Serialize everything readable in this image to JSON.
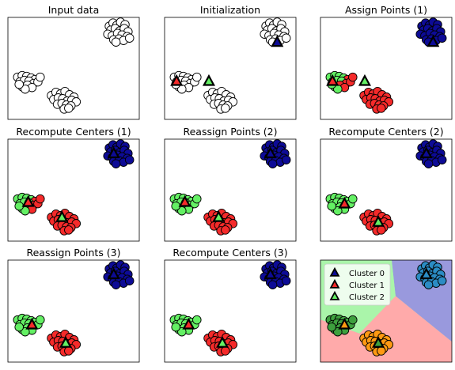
{
  "colors": {
    "cluster0": "#0d0b96",
    "cluster1": "#f52a2a",
    "cluster2": "#64f064",
    "unassigned": "#ffffff",
    "region0": "#9999dd",
    "region1": "#ffaaaa",
    "region2": "#aaf5aa",
    "final0": "#2b8cc4",
    "final1": "#ff9912",
    "final2": "#3ea03e"
  },
  "chart_data": [
    {
      "type": "scatter",
      "title": "Input data",
      "centers": [],
      "assignment": "none"
    },
    {
      "type": "scatter",
      "title": "Initialization",
      "centers": [
        [
          14.0,
          9.2
        ],
        [
          0.6,
          4.3
        ],
        [
          4.9,
          4.3
        ]
      ],
      "assignment": "none"
    },
    {
      "type": "scatter",
      "title": "Assign Points (1)",
      "centers": [
        [
          14.0,
          9.2
        ],
        [
          0.6,
          4.3
        ],
        [
          4.9,
          4.3
        ]
      ],
      "assignment": "step1"
    },
    {
      "type": "scatter",
      "title": "Recompute Centers (1)",
      "centers": [
        [
          13.1,
          10.5
        ],
        [
          1.7,
          4.4
        ],
        [
          6.2,
          2.5
        ]
      ],
      "assignment": "step1"
    },
    {
      "type": "scatter",
      "title": "Reassign Points (2)",
      "centers": [
        [
          13.1,
          10.5
        ],
        [
          1.7,
          4.4
        ],
        [
          6.2,
          2.5
        ]
      ],
      "assignment": "final"
    },
    {
      "type": "scatter",
      "title": "Recompute Centers (2)",
      "centers": [
        [
          13.1,
          10.5
        ],
        [
          2.2,
          4.2
        ],
        [
          6.7,
          1.9
        ]
      ],
      "assignment": "final"
    },
    {
      "type": "scatter",
      "title": "Reassign Points (3)",
      "centers": [
        [
          13.1,
          10.5
        ],
        [
          2.2,
          4.2
        ],
        [
          6.7,
          1.9
        ]
      ],
      "assignment": "final"
    },
    {
      "type": "scatter",
      "title": "Recompute Centers (3)",
      "centers": [
        [
          13.1,
          10.5
        ],
        [
          2.2,
          4.2
        ],
        [
          6.7,
          1.9
        ]
      ],
      "assignment": "final"
    },
    {
      "type": "scatter",
      "title": "",
      "decision_regions": true,
      "centers": [
        [
          13.1,
          10.5
        ],
        [
          2.2,
          4.2
        ],
        [
          6.7,
          1.9
        ]
      ],
      "assignment": "final",
      "legend": [
        "Cluster 0",
        "Cluster 1",
        "Cluster 2"
      ],
      "legend_position": "upper-left"
    }
  ],
  "points": {
    "x": [
      12.5,
      13.0,
      13.5,
      14.0,
      14.6,
      12.7,
      13.3,
      13.9,
      14.5,
      15.0,
      12.3,
      12.9,
      13.6,
      14.2,
      14.9,
      13.1,
      13.8,
      14.4,
      15.2,
      13.4,
      0.3,
      0.9,
      1.5,
      2.1,
      2.6,
      0.6,
      1.2,
      1.8,
      2.4,
      3.0,
      0.9,
      1.6,
      2.2,
      1.3,
      3.3,
      0.5,
      4.8,
      5.4,
      6.0,
      6.6,
      7.2,
      7.8,
      5.1,
      5.7,
      6.3,
      6.9,
      7.5,
      8.1,
      5.6,
      6.2,
      6.8,
      7.4,
      6.5,
      7.1
    ],
    "y": [
      11.2,
      11.6,
      11.3,
      11.7,
      11.4,
      10.7,
      10.9,
      10.6,
      10.9,
      10.5,
      10.2,
      10.0,
      10.3,
      10.1,
      9.9,
      9.5,
      9.6,
      9.4,
      9.7,
      9.2,
      4.8,
      5.0,
      4.9,
      4.7,
      4.5,
      4.2,
      4.4,
      4.3,
      4.0,
      4.2,
      3.6,
      3.8,
      3.5,
      3.3,
      4.8,
      3.9,
      2.5,
      2.9,
      2.7,
      3.0,
      2.6,
      2.3,
      2.0,
      2.2,
      2.1,
      1.8,
      1.9,
      1.7,
      1.4,
      1.5,
      1.3,
      1.2,
      0.8,
      0.9
    ],
    "step1": [
      0,
      0,
      0,
      0,
      0,
      0,
      0,
      0,
      0,
      0,
      0,
      0,
      0,
      0,
      0,
      0,
      0,
      0,
      0,
      0,
      2,
      2,
      2,
      2,
      1,
      2,
      2,
      2,
      1,
      1,
      2,
      1,
      1,
      2,
      1,
      2,
      1,
      1,
      1,
      1,
      1,
      1,
      1,
      1,
      1,
      1,
      1,
      1,
      1,
      1,
      1,
      1,
      1,
      1
    ],
    "final": [
      0,
      0,
      0,
      0,
      0,
      0,
      0,
      0,
      0,
      0,
      0,
      0,
      0,
      0,
      0,
      0,
      0,
      0,
      0,
      0,
      2,
      2,
      2,
      2,
      2,
      2,
      2,
      2,
      2,
      2,
      2,
      2,
      2,
      2,
      2,
      2,
      1,
      1,
      1,
      1,
      1,
      1,
      1,
      1,
      1,
      1,
      1,
      1,
      1,
      1,
      1,
      1,
      1,
      1
    ]
  },
  "axes": {
    "xlim": [
      -1,
      16.5
    ],
    "ylim": [
      -0.5,
      12.3
    ]
  }
}
